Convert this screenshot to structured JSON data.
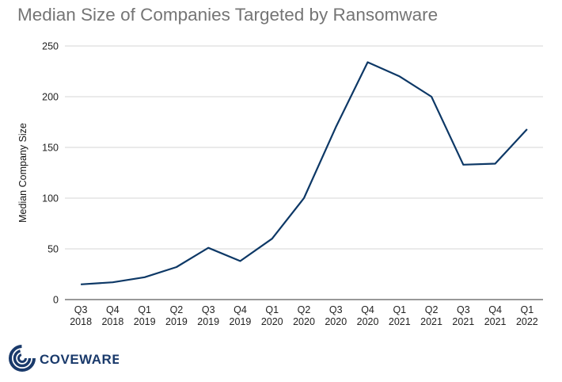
{
  "title": "Median Size of Companies Targeted by Ransomware",
  "colors": {
    "line": "#0d3866",
    "grid": "#d6d6d6",
    "axis": "#333333",
    "title": "#757575",
    "logo": "#1a3a6b"
  },
  "brand": {
    "name": "COVEWARE",
    "icon": "spiral-logo-icon"
  },
  "chart_data": {
    "type": "line",
    "title": "Median Size of Companies Targeted by Ransomware",
    "xlabel": "",
    "ylabel": "Median Company Size",
    "ylim": [
      0,
      250
    ],
    "yticks": [
      0,
      50,
      100,
      150,
      200,
      250
    ],
    "grid": true,
    "categories": [
      [
        "Q3",
        "2018"
      ],
      [
        "Q4",
        "2018"
      ],
      [
        "Q1",
        "2019"
      ],
      [
        "Q2",
        "2019"
      ],
      [
        "Q3",
        "2019"
      ],
      [
        "Q4",
        "2019"
      ],
      [
        "Q1",
        "2020"
      ],
      [
        "Q2",
        "2020"
      ],
      [
        "Q3",
        "2020"
      ],
      [
        "Q4",
        "2020"
      ],
      [
        "Q1",
        "2021"
      ],
      [
        "Q2",
        "2021"
      ],
      [
        "Q3",
        "2021"
      ],
      [
        "Q4",
        "2021"
      ],
      [
        "Q1",
        "2022"
      ]
    ],
    "series": [
      {
        "values": [
          15,
          17,
          22,
          32,
          51,
          38,
          60,
          100,
          170,
          234,
          220,
          200,
          133,
          134,
          168
        ]
      }
    ]
  }
}
